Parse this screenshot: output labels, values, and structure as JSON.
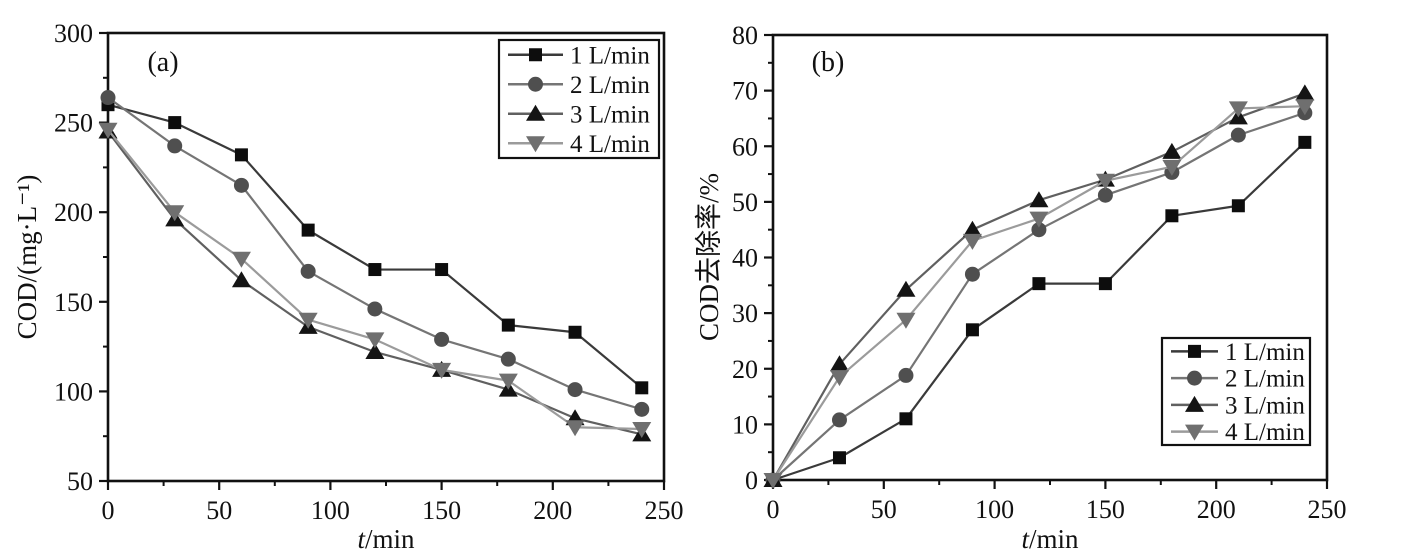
{
  "figure": {
    "background": "#ffffff",
    "axis_color": "#111111",
    "text_color": "#111111"
  },
  "chart_data": [
    {
      "type": "line",
      "panel_label": "(a)",
      "xlabel": "t/min",
      "xlabel_italic_prefix_len": 1,
      "ylabel": "COD/(mg·L⁻¹)",
      "xlim": [
        0,
        250
      ],
      "ylim": [
        50,
        300
      ],
      "xticks": [
        0,
        50,
        100,
        150,
        200,
        250
      ],
      "yticks": [
        50,
        100,
        150,
        200,
        250,
        300
      ],
      "x_minor_step": 25,
      "y_minor_step": 25,
      "grid": false,
      "legend_position": "top-right",
      "x": [
        0,
        30,
        60,
        90,
        120,
        150,
        180,
        210,
        240
      ],
      "series": [
        {
          "name": "1 L/min",
          "marker": "square",
          "marker_color": "#0d0d0d",
          "line_color": "#3a3a3a",
          "values": [
            260,
            250,
            232,
            190,
            168,
            168,
            137,
            133,
            102
          ]
        },
        {
          "name": "2 L/min",
          "marker": "circle",
          "marker_color": "#4f4f4f",
          "line_color": "#757575",
          "values": [
            264,
            237,
            215,
            167,
            146,
            129,
            118,
            101,
            90
          ]
        },
        {
          "name": "3 L/min",
          "marker": "triangle-up",
          "marker_color": "#141414",
          "line_color": "#606060",
          "values": [
            245,
            196,
            162,
            136,
            122,
            112,
            101,
            85,
            76
          ]
        },
        {
          "name": "4 L/min",
          "marker": "triangle-down",
          "marker_color": "#6f6f6f",
          "line_color": "#9b9b9b",
          "values": [
            246,
            200,
            174,
            140,
            129,
            112,
            106,
            80,
            79
          ]
        }
      ]
    },
    {
      "type": "line",
      "panel_label": "(b)",
      "xlabel": "t/min",
      "xlabel_italic_prefix_len": 1,
      "ylabel": "COD去除率/%",
      "xlim": [
        0,
        250
      ],
      "ylim": [
        0,
        80
      ],
      "xticks": [
        0,
        50,
        100,
        150,
        200,
        250
      ],
      "yticks": [
        0,
        10,
        20,
        30,
        40,
        50,
        60,
        70,
        80
      ],
      "x_minor_step": 25,
      "y_minor_step": 5,
      "grid": false,
      "legend_position": "bottom-right",
      "x": [
        0,
        30,
        60,
        90,
        120,
        150,
        180,
        210,
        240
      ],
      "series": [
        {
          "name": "1 L/min",
          "marker": "square",
          "marker_color": "#0d0d0d",
          "line_color": "#3a3a3a",
          "values": [
            0,
            4,
            11,
            27,
            35.3,
            35.3,
            47.5,
            49.3,
            60.7
          ]
        },
        {
          "name": "2 L/min",
          "marker": "circle",
          "marker_color": "#4f4f4f",
          "line_color": "#757575",
          "values": [
            0,
            10.8,
            18.8,
            37,
            45,
            51.2,
            55.3,
            62,
            66
          ]
        },
        {
          "name": "3 L/min",
          "marker": "triangle-up",
          "marker_color": "#141414",
          "line_color": "#606060",
          "values": [
            0,
            20.8,
            34.2,
            45,
            50.3,
            54,
            59,
            65.2,
            69.5
          ]
        },
        {
          "name": "4 L/min",
          "marker": "triangle-down",
          "marker_color": "#6f6f6f",
          "line_color": "#9b9b9b",
          "values": [
            0,
            18.5,
            28.8,
            43,
            47,
            53.8,
            56.3,
            66.8,
            67.2
          ]
        }
      ]
    }
  ]
}
